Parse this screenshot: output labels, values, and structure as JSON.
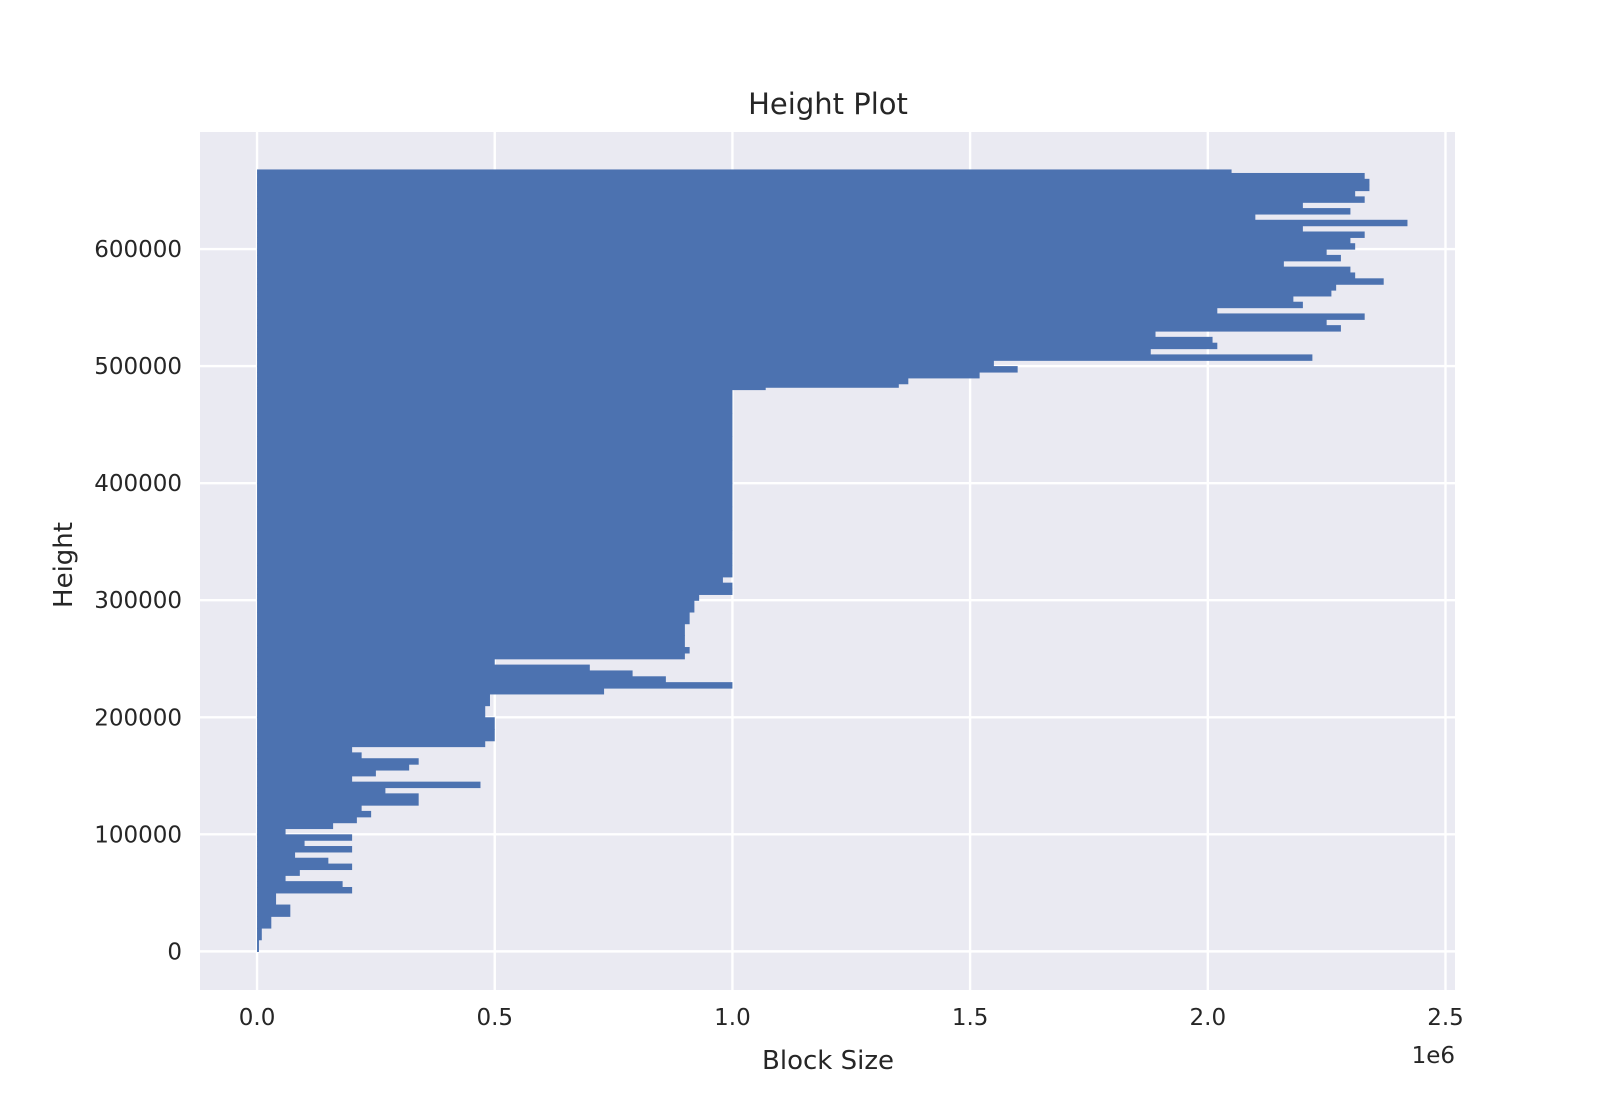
{
  "chart_data": {
    "type": "bar",
    "orientation": "horizontal",
    "title": "Height Plot",
    "xlabel": "Block Size",
    "ylabel": "Height",
    "x_offset_label": "1e6",
    "xlim": [
      -0.12,
      2.52
    ],
    "ylim": [
      -33000,
      700000
    ],
    "x_ticks": [
      0.0,
      0.5,
      1.0,
      1.5,
      2.0,
      2.5
    ],
    "x_tick_labels": [
      "0.0",
      "0.5",
      "1.0",
      "1.5",
      "2.0",
      "2.5"
    ],
    "y_ticks": [
      0,
      100000,
      200000,
      300000,
      400000,
      500000,
      600000
    ],
    "y_tick_labels": [
      "0",
      "100000",
      "200000",
      "300000",
      "400000",
      "500000",
      "600000"
    ],
    "grid": true,
    "colors": {
      "bar": "#4c72b0",
      "plot_background": "#eaeaf2",
      "grid": "#ffffff"
    },
    "series": [
      {
        "height": [
          0,
          10000,
          20000,
          30000,
          40000,
          50000,
          55000,
          60000,
          65000,
          70000,
          75000,
          80000,
          85000,
          90000,
          95000,
          100000,
          105000,
          110000,
          115000,
          120000,
          125000,
          135000,
          140000,
          145000,
          150000,
          155000,
          160000,
          165000,
          170000,
          175000,
          180000,
          190000,
          200000,
          210000,
          220000,
          225000,
          230000,
          235000,
          240000,
          245000,
          250000,
          255000,
          260000,
          270000,
          280000,
          290000,
          300000,
          305000,
          310000,
          315000,
          320000,
          330000,
          340000,
          360000,
          380000,
          400000,
          420000,
          440000,
          460000,
          480000,
          482000,
          485000,
          490000,
          495000,
          500000,
          505000,
          510000,
          515000,
          520000,
          525000,
          530000,
          535000,
          540000,
          545000,
          550000,
          555000,
          560000,
          565000,
          570000,
          575000,
          580000,
          585000,
          590000,
          595000,
          600000,
          605000,
          610000,
          615000,
          620000,
          625000,
          630000,
          635000,
          640000,
          645000,
          650000,
          655000,
          660000,
          665000
        ],
        "block_size": [
          0.004,
          0.01,
          0.03,
          0.07,
          0.04,
          0.2,
          0.18,
          0.06,
          0.09,
          0.2,
          0.15,
          0.08,
          0.2,
          0.1,
          0.2,
          0.06,
          0.16,
          0.21,
          0.24,
          0.22,
          0.34,
          0.27,
          0.47,
          0.2,
          0.25,
          0.32,
          0.34,
          0.22,
          0.2,
          0.48,
          0.5,
          0.5,
          0.48,
          0.49,
          0.73,
          1.0,
          0.86,
          0.79,
          0.7,
          0.5,
          0.9,
          0.91,
          0.9,
          0.9,
          0.91,
          0.92,
          0.93,
          1.0,
          1.0,
          0.98,
          1.0,
          1.0,
          1.0,
          1.0,
          1.0,
          1.0,
          1.0,
          1.0,
          1.0,
          1.07,
          1.35,
          1.37,
          1.52,
          1.6,
          1.55,
          2.22,
          1.88,
          2.02,
          2.01,
          1.89,
          2.28,
          2.25,
          2.33,
          2.02,
          2.2,
          2.18,
          2.26,
          2.27,
          2.37,
          2.31,
          2.3,
          2.16,
          2.28,
          2.25,
          2.31,
          2.3,
          2.33,
          2.2,
          2.42,
          2.1,
          2.3,
          2.2,
          2.33,
          2.31,
          2.34,
          2.34,
          2.33,
          2.05
        ]
      }
    ]
  }
}
